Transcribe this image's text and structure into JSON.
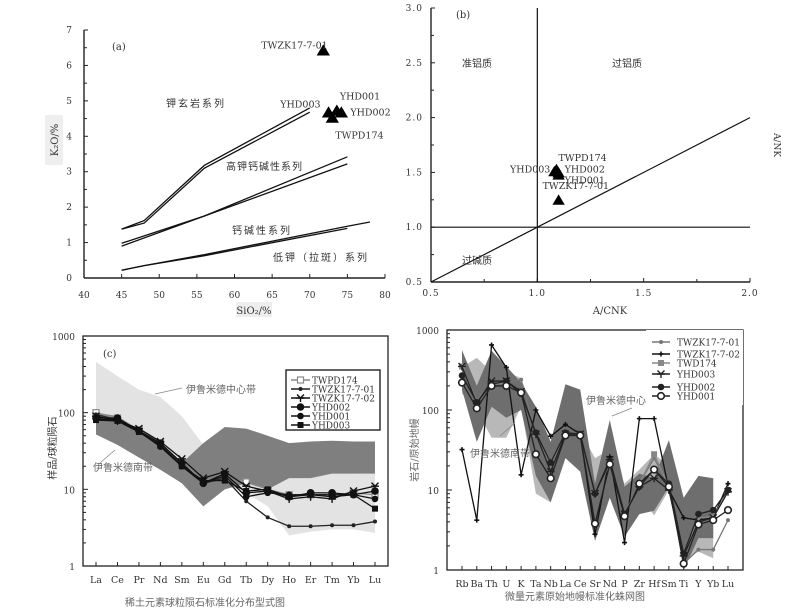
{
  "chart_data": [
    {
      "id": "a",
      "type": "scatter",
      "panel_label": "(a)",
      "xlabel": "SiO₂/%",
      "ylabel": "K₂O/%",
      "xlim": [
        40,
        80
      ],
      "ylim": [
        0,
        7
      ],
      "xticks": [
        "40",
        "45",
        "50",
        "55",
        "60",
        "65",
        "70",
        "75",
        "80"
      ],
      "yticks": [
        "0",
        "1",
        "2",
        "3",
        "4",
        "5",
        "6",
        "7"
      ],
      "boundaries": [
        {
          "name": "shoshonite-upper",
          "x": [
            45,
            48,
            56,
            70
          ],
          "y": [
            1.38,
            1.62,
            3.18,
            4.8
          ]
        },
        {
          "name": "shoshonite-lower",
          "x": [
            45,
            48,
            56,
            70
          ],
          "y": [
            1.38,
            1.55,
            3.1,
            4.68
          ]
        },
        {
          "name": "highk-upper",
          "x": [
            45,
            56,
            75
          ],
          "y": [
            0.98,
            1.75,
            3.42
          ]
        },
        {
          "name": "highk-lower",
          "x": [
            45,
            56,
            75
          ],
          "y": [
            0.9,
            1.75,
            3.22
          ]
        },
        {
          "name": "calcalk-upper",
          "x": [
            45,
            48,
            56,
            75,
            78
          ],
          "y": [
            0.22,
            0.35,
            0.66,
            1.46,
            1.58
          ]
        },
        {
          "name": "calcalk-lower",
          "x": [
            45,
            48,
            56,
            75
          ],
          "y": [
            0.22,
            0.35,
            0.63,
            1.4
          ]
        }
      ],
      "region_labels": [
        "钾玄岩系列",
        "高钾钙碱性系列",
        "钙碱性系列",
        "低钾（拉斑）系列"
      ],
      "points": [
        {
          "label": "TWZK17-7-01",
          "x": 71.8,
          "y": 6.4
        },
        {
          "label": "YHD003",
          "x": 72.5,
          "y": 4.65
        },
        {
          "label": "YHD001",
          "x": 73.6,
          "y": 4.7
        },
        {
          "label": "YHD002",
          "x": 74.2,
          "y": 4.65
        },
        {
          "label": "TWPD174",
          "x": 73.0,
          "y": 4.5
        }
      ]
    },
    {
      "id": "b",
      "type": "scatter",
      "panel_label": "(b)",
      "xlabel": "A/CNK",
      "ylabel": "A/NK",
      "xlim": [
        0.5,
        2.0
      ],
      "ylim": [
        0.5,
        3.0
      ],
      "xticks": [
        "0.5",
        "1.0",
        "1.5",
        "2.0"
      ],
      "yticks": [
        "0.5",
        "1.0",
        "1.5",
        "2.0",
        "2.5",
        "3.0"
      ],
      "region_labels": [
        "准铝质",
        "过铝质",
        "过碱质"
      ],
      "points": [
        {
          "label": "TWPD174",
          "x": 1.09,
          "y": 1.52
        },
        {
          "label": "YHD002",
          "x": 1.1,
          "y": 1.49
        },
        {
          "label": "YHD001",
          "x": 1.1,
          "y": 1.47
        },
        {
          "label": "YHD003",
          "x": 1.08,
          "y": 1.5
        },
        {
          "label": "TWZK17-7-01",
          "x": 1.1,
          "y": 1.24
        }
      ]
    },
    {
      "id": "c",
      "type": "line",
      "panel_label": "(c)",
      "title": "稀土元素球粒陨石标准化分布型式图",
      "ylabel": "样品/球粒陨石",
      "yscale": "log",
      "ylim": [
        1,
        1000
      ],
      "yticks": [
        "1",
        "10",
        "100",
        "1000"
      ],
      "categories": [
        "La",
        "Ce",
        "Pr",
        "Nd",
        "Sm",
        "Eu",
        "Gd",
        "Tb",
        "Dy",
        "Ho",
        "Er",
        "Tm",
        "Yb",
        "Lu"
      ],
      "bands": [
        {
          "label": "伊鲁米德中心带",
          "upper": [
            460,
            300,
            200,
            160,
            90,
            38,
            40,
            32,
            22,
            15,
            14,
            17,
            16,
            16
          ],
          "lower": [
            100,
            85,
            55,
            35,
            13,
            7,
            12,
            9,
            6,
            2.5,
            2.8,
            3,
            3,
            2.7
          ]
        },
        {
          "label": "伊鲁米德南带",
          "upper": [
            100,
            90,
            60,
            40,
            22,
            40,
            65,
            62,
            50,
            40,
            42,
            43,
            42,
            42
          ],
          "lower": [
            52,
            38,
            26,
            18,
            12,
            6,
            10,
            12,
            10,
            14,
            14,
            16,
            16,
            16
          ]
        }
      ],
      "series": [
        {
          "name": "TWPD174",
          "marker": "open-square",
          "color": "#8a8a8a",
          "values": [
            100,
            85,
            60,
            40,
            22,
            13,
            14,
            12.5,
            10,
            8.5,
            8.5,
            8.5,
            9,
            8.5
          ]
        },
        {
          "name": "TWZK17-7-01",
          "marker": "dot",
          "color": "#222222",
          "values": [
            95,
            80,
            58,
            38,
            21,
            12,
            14,
            7,
            4.3,
            3.3,
            3.3,
            3.4,
            3.4,
            3.8
          ]
        },
        {
          "name": "TWZK17-7-02",
          "marker": "star",
          "color": "#111111",
          "values": [
            90,
            78,
            62,
            42,
            25,
            14,
            17,
            11,
            9.5,
            7.5,
            8,
            7.5,
            9.5,
            11
          ]
        },
        {
          "name": "YHD002",
          "marker": "hexagon",
          "color": "#111111",
          "values": [
            85,
            85,
            58,
            40,
            22,
            12,
            16,
            9,
            9.5,
            8,
            9,
            9,
            8.5,
            9.5
          ]
        },
        {
          "name": "YHD001",
          "marker": "circle",
          "color": "#111111",
          "values": [
            82,
            80,
            57,
            36,
            20,
            12,
            15,
            8,
            9,
            8.5,
            8.5,
            8.5,
            8.5,
            7.5
          ]
        },
        {
          "name": "YHD003",
          "marker": "square",
          "color": "#111111",
          "values": [
            80,
            78,
            56,
            37,
            20,
            13,
            13,
            9.5,
            10,
            8,
            8.5,
            8,
            8.5,
            5.6
          ]
        }
      ]
    },
    {
      "id": "d",
      "type": "line",
      "title": "微量元素原始地幔标准化蛛网图",
      "ylabel": "岩石/原始地幔",
      "yscale": "log",
      "ylim": [
        1,
        1000
      ],
      "yticks": [
        "1",
        "10",
        "100",
        "1000"
      ],
      "categories": [
        "Rb",
        "Ba",
        "Th",
        "U",
        "K",
        "Ta",
        "Nb",
        "La",
        "Ce",
        "Sr",
        "Nd",
        "P",
        "Zr",
        "Hf",
        "Sm",
        "Ti",
        "Y",
        "Yb",
        "Lu"
      ],
      "bands": [
        {
          "label": "伊鲁米德中心带",
          "color": "#6e6e6e",
          "upper": [
            560,
            200,
            550,
            350,
            220,
            110,
            40,
            210,
            180,
            12,
            75,
            11,
            16,
            14,
            42,
            8,
            15,
            14,
            null
          ],
          "lower": [
            180,
            40,
            110,
            80,
            100,
            15,
            7,
            25,
            17,
            2.3,
            8,
            2.6,
            5,
            5.5,
            11,
            1.0,
            2.5,
            2.5,
            null
          ]
        },
        {
          "label": "伊鲁米德南带",
          "color": "#b8b8b8",
          "upper": [
            340,
            450,
            300,
            300,
            250,
            80,
            30,
            60,
            55,
            25,
            32,
            12,
            18,
            28,
            20,
            3,
            5,
            6,
            null
          ],
          "lower": [
            160,
            100,
            45,
            45,
            110,
            9,
            7,
            40,
            40,
            4,
            15,
            3.5,
            9,
            4.8,
            10,
            1.3,
            1.7,
            1.4,
            null
          ]
        }
      ],
      "series": [
        {
          "name": "TWZK17-7-01",
          "marker": "dot",
          "color": "#777777",
          "values": [
            340,
            130,
            230,
            220,
            240,
            50,
            20,
            50,
            48,
            9,
            22,
            4.5,
            12,
            25,
            11,
            1.2,
            1.8,
            1.8,
            4.2
          ]
        },
        {
          "name": "TWZK17-7-02",
          "marker": "plus",
          "color": "#111111",
          "values": [
            32,
            4.2,
            650,
            340,
            15.5,
            100,
            47,
            66,
            50,
            2.8,
            26,
            2.2,
            78,
            78,
            10,
            4.5,
            4.2,
            4.5,
            12
          ]
        },
        {
          "name": "TWD174",
          "marker": "square",
          "color": "#888888",
          "values": [
            350,
            125,
            210,
            220,
            170,
            50,
            22,
            50,
            50,
            9,
            21,
            5,
            12,
            28,
            11,
            1.6,
            4.5,
            4.6,
            10
          ]
        },
        {
          "name": "YHD003",
          "marker": "star",
          "color": "#222222",
          "values": [
            350,
            120,
            230,
            230,
            170,
            50,
            17,
            50,
            50,
            9,
            24,
            5,
            11,
            14,
            10,
            1.5,
            4,
            4.5,
            9.5
          ]
        },
        {
          "name": "YHD002",
          "marker": "circle",
          "color": "#222222",
          "values": [
            270,
            125,
            210,
            230,
            160,
            52,
            22,
            52,
            50,
            9,
            22,
            5,
            11,
            18,
            12,
            1.6,
            5,
            5.6,
            10
          ]
        },
        {
          "name": "YHD001",
          "marker": "open-circle",
          "color": "#222222",
          "values": [
            220,
            105,
            200,
            200,
            165,
            28,
            14,
            48,
            48,
            3.8,
            21,
            4.7,
            12,
            18,
            11,
            1.2,
            3.7,
            4.2,
            5.6
          ]
        }
      ]
    }
  ]
}
